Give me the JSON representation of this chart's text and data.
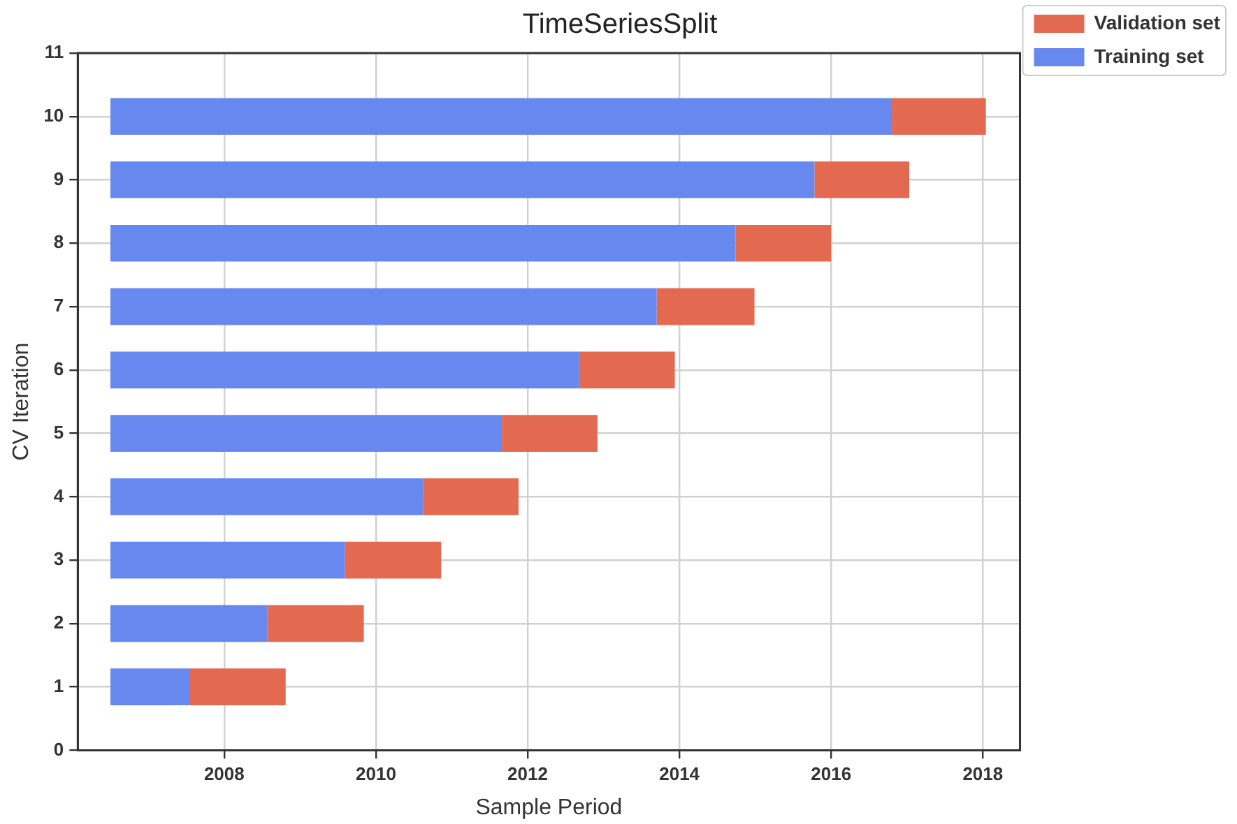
{
  "chart_data": {
    "type": "bar",
    "title": "TimeSeriesSplit",
    "xlabel": "Sample Period",
    "ylabel": "CV Iteration",
    "orientation": "horizontal",
    "x": [
      1,
      2,
      3,
      4,
      5,
      6,
      7,
      8,
      9,
      10
    ],
    "series": [
      {
        "name": "Training set",
        "color": "#6788ee",
        "base": [
          2006.5,
          2006.5,
          2006.5,
          2006.5,
          2006.5,
          2006.5,
          2006.5,
          2006.5,
          2006.5,
          2006.5
        ],
        "values": [
          1.05,
          2.07,
          3.09,
          4.12,
          5.16,
          6.18,
          7.2,
          8.24,
          9.28,
          10.3
        ]
      },
      {
        "name": "Validation set",
        "color": "#e36951",
        "base": [
          2007.55,
          2008.57,
          2009.59,
          2010.62,
          2011.66,
          2012.68,
          2013.7,
          2014.74,
          2015.78,
          2016.8
        ],
        "values": [
          1.26,
          1.27,
          1.27,
          1.26,
          1.26,
          1.26,
          1.29,
          1.26,
          1.25,
          1.24
        ]
      }
    ],
    "xlim": [
      2006.07,
      2018.49
    ],
    "xticks": [
      2008,
      2010,
      2012,
      2014,
      2016,
      2018
    ],
    "ylim": [
      0,
      11
    ],
    "yticks": [
      0,
      1,
      2,
      3,
      4,
      5,
      6,
      7,
      8,
      9,
      10,
      11
    ],
    "grid": true,
    "legend": "top right"
  }
}
